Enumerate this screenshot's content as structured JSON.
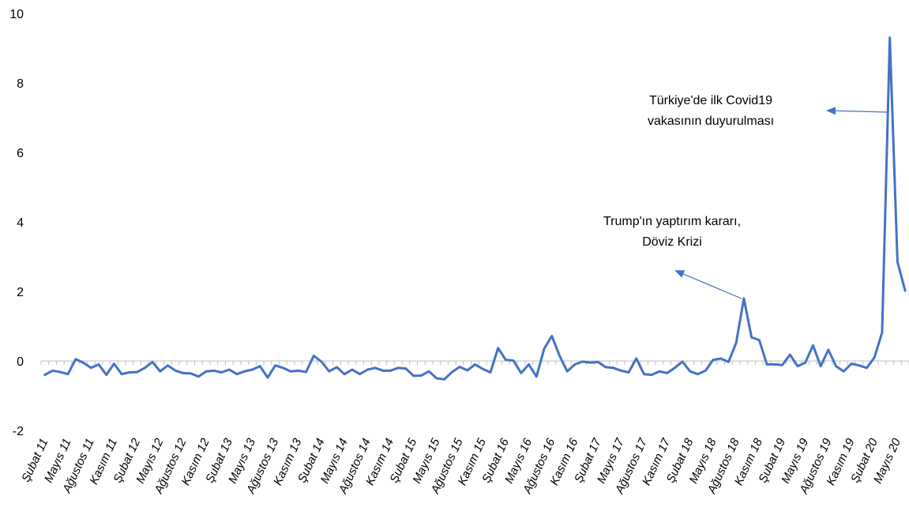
{
  "chart_data": {
    "type": "line",
    "title": "",
    "xlabel": "",
    "ylabel": "",
    "ylim": [
      -2,
      10
    ],
    "yticks": [
      -2,
      0,
      2,
      4,
      6,
      8,
      10
    ],
    "grid": false,
    "line_color": "#4472C4",
    "x_tick_labels": [
      "Şubat 11",
      "Mayıs 11",
      "Ağustos 11",
      "Kasım 11",
      "Şubat 12",
      "Mayıs 12",
      "Ağustos 12",
      "Kasım 12",
      "Şubat 13",
      "Mayıs 13",
      "Ağustos 13",
      "Kasım 13",
      "Şubat 14",
      "Mayıs 14",
      "Ağustos 14",
      "Kasım 14",
      "Şubat 15",
      "Mayıs 15",
      "Ağustos 15",
      "Kasım 15",
      "Şubat 16",
      "Mayıs 16",
      "Ağustos 16",
      "Kasım 16",
      "Şubat 17",
      "Mayıs 17",
      "Ağustos 17",
      "Kasım 17",
      "Şubat 18",
      "Mayıs 18",
      "Ağustos 18",
      "Kasım 18",
      "Şubat 19",
      "Mayıs 19",
      "Ağustos 19",
      "Kasım 19",
      "Şubat 20",
      "Mayıs 20"
    ],
    "values": [
      -0.4,
      -0.28,
      -0.32,
      -0.38,
      0.05,
      -0.05,
      -0.2,
      -0.1,
      -0.4,
      -0.08,
      -0.38,
      -0.33,
      -0.32,
      -0.2,
      -0.03,
      -0.3,
      -0.13,
      -0.28,
      -0.35,
      -0.36,
      -0.45,
      -0.3,
      -0.28,
      -0.33,
      -0.25,
      -0.38,
      -0.3,
      -0.25,
      -0.15,
      -0.48,
      -0.13,
      -0.2,
      -0.3,
      -0.28,
      -0.32,
      0.15,
      -0.02,
      -0.3,
      -0.18,
      -0.38,
      -0.25,
      -0.38,
      -0.25,
      -0.2,
      -0.28,
      -0.28,
      -0.2,
      -0.22,
      -0.43,
      -0.42,
      -0.3,
      -0.5,
      -0.53,
      -0.32,
      -0.17,
      -0.27,
      -0.1,
      -0.23,
      -0.33,
      0.37,
      0.03,
      0.01,
      -0.35,
      -0.1,
      -0.45,
      0.35,
      0.72,
      0.15,
      -0.3,
      -0.1,
      -0.02,
      -0.05,
      -0.03,
      -0.18,
      -0.2,
      -0.28,
      -0.33,
      0.07,
      -0.38,
      -0.4,
      -0.3,
      -0.35,
      -0.2,
      -0.02,
      -0.3,
      -0.38,
      -0.28,
      0.03,
      0.07,
      -0.03,
      0.52,
      1.8,
      0.68,
      0.6,
      -0.1,
      -0.1,
      -0.12,
      0.18,
      -0.15,
      -0.05,
      0.45,
      -0.15,
      0.32,
      -0.15,
      -0.3,
      -0.08,
      -0.13,
      -0.2,
      0.1,
      0.82,
      9.3,
      2.85,
      2.02
    ],
    "annotations": [
      {
        "lines": [
          "Türkiye'de ilk Covid19",
          "vakasının duyurulması"
        ]
      },
      {
        "lines": [
          "Trump'ın yaptırım kararı,",
          "Döviz Krizi"
        ]
      }
    ]
  }
}
